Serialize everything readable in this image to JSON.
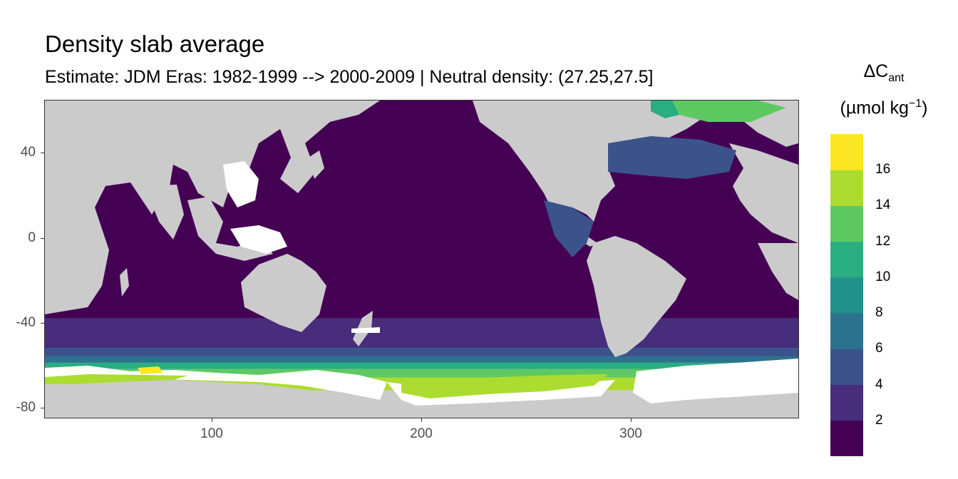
{
  "chart_data": {
    "type": "heatmap",
    "title": "Density slab average",
    "subtitle": "Estimate: JDM Eras: 1982-1999 --> 2000-2009 | Neutral density: (27.25,27.5]",
    "xlabel": "",
    "ylabel": "",
    "xlim": [
      20,
      380
    ],
    "ylim": [
      -85,
      65
    ],
    "x_ticks": [
      "100",
      "200",
      "300"
    ],
    "x_tick_values": [
      100,
      200,
      300
    ],
    "y_ticks": [
      "40",
      "0",
      "-40",
      "-80"
    ],
    "y_tick_values": [
      40,
      0,
      -40,
      -80
    ],
    "land_color": "#cbcbcb",
    "nodata_color": "#ffffff",
    "legend": {
      "title_main": "ΔC",
      "title_sub": "ant",
      "unit_open": "(µmol kg",
      "unit_sup": "−1",
      "unit_close": ")",
      "placement": "right",
      "breaks": [
        "2",
        "4",
        "6",
        "8",
        "10",
        "12",
        "14",
        "16"
      ],
      "colors": [
        "#440154",
        "#472d7b",
        "#3b528b",
        "#2c728e",
        "#21918c",
        "#28ae80",
        "#5ec962",
        "#addc30",
        "#fde725"
      ]
    },
    "bands": [
      {
        "lat_from": 65,
        "lat_to": -38,
        "class": 0
      },
      {
        "lat_from": -38,
        "lat_to": -52,
        "class": 1
      },
      {
        "lat_from": -52,
        "lat_to": -56,
        "class": 2
      },
      {
        "lat_from": -56,
        "lat_to": -59,
        "class": 3
      },
      {
        "lat_from": -59,
        "lat_to": -62,
        "class": 5
      },
      {
        "lat_from": -62,
        "lat_to": -66,
        "class": 6
      },
      {
        "lat_from": -66,
        "lat_to": -72,
        "class": 7
      }
    ]
  }
}
